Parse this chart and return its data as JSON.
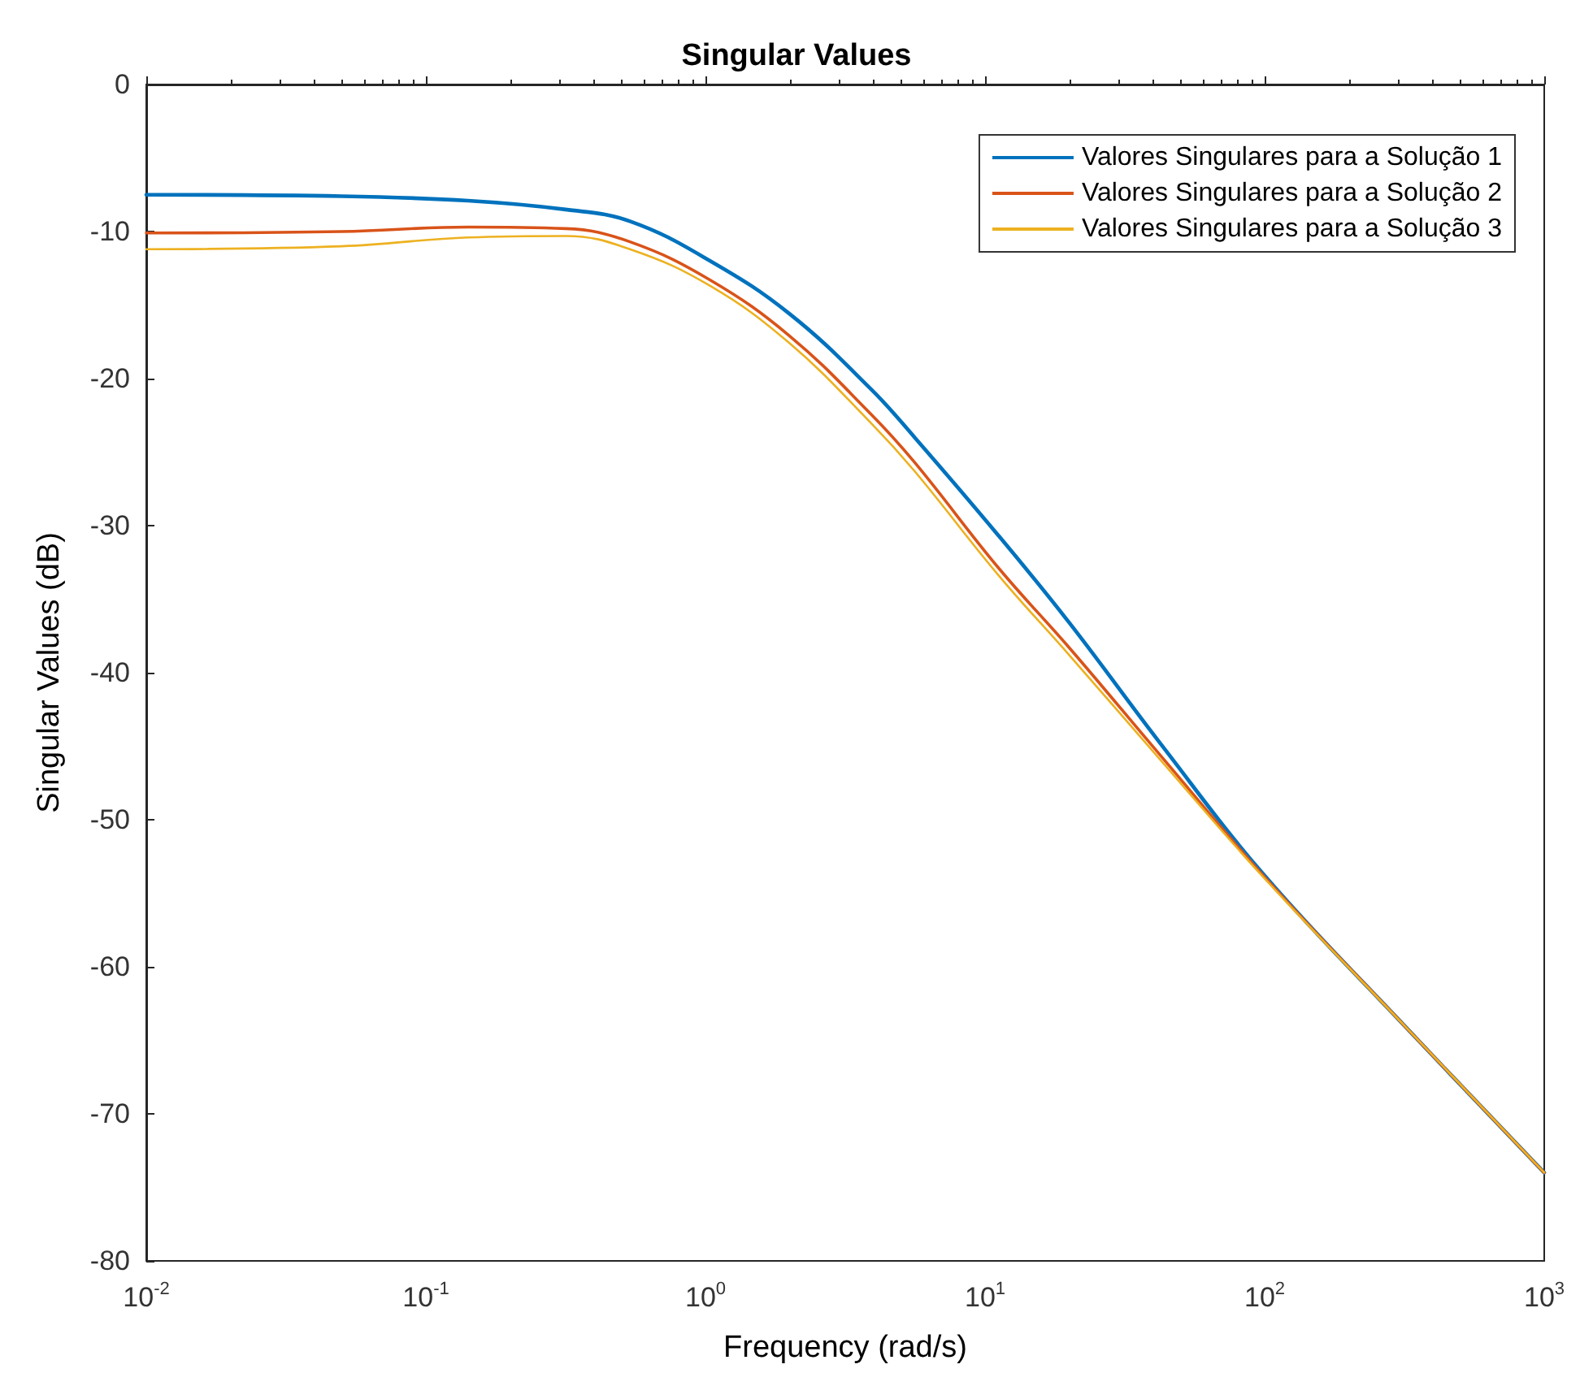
{
  "chart_data": {
    "type": "line",
    "title": "Singular Values",
    "xlabel": "Frequency (rad/s)",
    "ylabel": "Singular Values (dB)",
    "x": [
      0.01,
      0.05,
      0.1415,
      0.316,
      0.537,
      1.04,
      2.0,
      3.9,
      5.6,
      11.2,
      20,
      42.7,
      100,
      316,
      1000
    ],
    "series": [
      {
        "name": "Valores Singulares para a Solução 1",
        "color": "#0072bd",
        "values": [
          -7.5,
          -7.6,
          -7.9,
          -8.5,
          -9.3,
          -12.0,
          -15.6,
          -20.7,
          -24.0,
          -30.7,
          -36.6,
          -44.9,
          -53.8,
          -64,
          -74
        ]
      },
      {
        "name": "Valores Singulares para a Solução 2",
        "color": "#d95319",
        "values": [
          -10.1,
          -10.0,
          -9.7,
          -9.8,
          -10.7,
          -13.3,
          -17.1,
          -22.4,
          -25.7,
          -32.9,
          -38.3,
          -45.7,
          -53.9,
          -64,
          -74
        ]
      },
      {
        "name": "Valores Singulares para a Solução 3",
        "color": "#edb120",
        "values": [
          -11.2,
          -11.0,
          -10.4,
          -10.3,
          -11.2,
          -13.7,
          -17.6,
          -23.0,
          -26.3,
          -33.4,
          -38.8,
          -46.0,
          -54.0,
          -64,
          -74
        ]
      }
    ],
    "log": "x",
    "xlim": [
      0.01,
      1000
    ],
    "xticks": [
      {
        "value": 0.01,
        "label": "10$^{-2}$"
      },
      {
        "value": 0.1,
        "label": "10$^{-1}$"
      },
      {
        "value": 1,
        "label": "10$^{0}$"
      },
      {
        "value": 10,
        "label": "10$^{1}$"
      },
      {
        "value": 100,
        "label": "10$^{2}$"
      },
      {
        "value": 1000,
        "label": "10$^{3}$"
      }
    ],
    "ylim": [
      -80,
      0
    ],
    "yticks": [
      -80,
      -70,
      -60,
      -50,
      -40,
      -30,
      -20,
      -10,
      0
    ],
    "grid": false,
    "legend": "top right",
    "marker": "none",
    "line_style": "solid"
  }
}
